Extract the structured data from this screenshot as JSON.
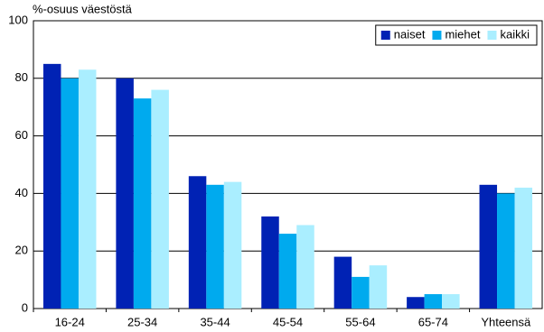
{
  "chart_data": {
    "type": "bar",
    "title": "%-osuus väestöstä",
    "categories": [
      "16-24",
      "25-34",
      "35-44",
      "45-54",
      "55-64",
      "65-74",
      "Yhteensä"
    ],
    "series": [
      {
        "name": "naiset",
        "color": "#0022b4",
        "values": [
          85,
          80,
          46,
          32,
          18,
          4,
          43
        ]
      },
      {
        "name": "miehet",
        "color": "#00aaee",
        "values": [
          80,
          73,
          43,
          26,
          11,
          5,
          40
        ]
      },
      {
        "name": "kaikki",
        "color": "#aaeeff",
        "values": [
          83,
          76,
          44,
          29,
          15,
          5,
          42
        ]
      }
    ],
    "ylim": [
      0,
      100
    ],
    "yticks": [
      0,
      20,
      40,
      60,
      80,
      100
    ],
    "grid": true,
    "legend": "top-right"
  }
}
